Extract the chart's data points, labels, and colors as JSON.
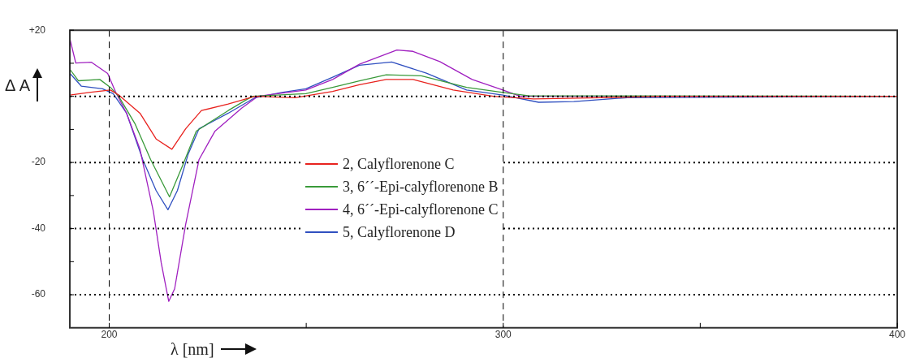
{
  "chart_data": {
    "type": "line",
    "xlabel": "λ [nm]",
    "ylabel": "Δ A",
    "xlim": [
      190,
      400
    ],
    "ylim": [
      -70,
      20
    ],
    "xticks": [
      200,
      {
        "value": 250,
        "label": null
      },
      300,
      {
        "value": 350,
        "label": null
      },
      400
    ],
    "yticks": [
      {
        "value": 20,
        "label": "+20"
      },
      {
        "value": 10,
        "label": null
      },
      {
        "value": 0,
        "label": null
      },
      {
        "value": -10,
        "label": null
      },
      -20,
      {
        "value": -30,
        "label": null
      },
      -40,
      {
        "value": -50,
        "label": null
      },
      -60
    ],
    "grid": false,
    "legend": "center",
    "line_style": "solid",
    "marker": "none",
    "ref_lines": [
      {
        "axis": "x",
        "value": 200,
        "line_style": "dashed",
        "color": "#000000"
      },
      {
        "axis": "x",
        "value": 300,
        "line_style": "dashed",
        "color": "#000000"
      },
      {
        "axis": "y",
        "value": 0,
        "line_style": "dotted",
        "color": "#000000"
      },
      {
        "axis": "y",
        "value": -20,
        "line_style": "dotted",
        "color": "#000000"
      },
      {
        "axis": "y",
        "value": -40,
        "line_style": "dotted",
        "color": "#000000"
      },
      {
        "axis": "y",
        "value": -60,
        "line_style": "dotted",
        "color": "#000000"
      }
    ],
    "series": [
      {
        "name": "2, Calyflorenone C",
        "color": "#e8231f",
        "x": [
          190,
          194.9,
          200.3,
          202.4,
          207.8,
          211.9,
          215.9,
          219.4,
          223.4,
          230.2,
          237,
          247.2,
          256.7,
          263.5,
          270.3,
          277.1,
          287.3,
          297.5,
          307.7,
          324.7,
          340,
          400
        ],
        "values": [
          0.4,
          1.2,
          1.9,
          0.4,
          -5.1,
          -12.9,
          -16,
          -9.8,
          -4.3,
          -2.3,
          0,
          -0.4,
          1.5,
          3.5,
          5.1,
          5.1,
          1.9,
          0,
          -0.8,
          -0.4,
          0,
          0
        ]
      },
      {
        "name": "3, 6´´-Epi-calyflorenone B",
        "color": "#3a9a3a",
        "x": [
          190,
          192.2,
          197.6,
          200.3,
          202.4,
          206.5,
          210.5,
          215.3,
          218.7,
          222.1,
          230.2,
          236.3,
          249.9,
          256.7,
          263.5,
          270.3,
          279.2,
          290.7,
          299.9,
          306.3,
          400
        ],
        "values": [
          8.2,
          4.7,
          5.1,
          2.7,
          0,
          -8.2,
          -19.1,
          -30.4,
          -20.7,
          -10.5,
          -4.3,
          0,
          0.8,
          2.7,
          4.7,
          6.5,
          6.2,
          2.7,
          1.2,
          0.2,
          0
        ]
      },
      {
        "name": "4, 6´´-Epi-calyflorenone C",
        "color": "#a020c0",
        "x": [
          190,
          191.5,
          195.5,
          199.6,
          201.7,
          204.4,
          207.8,
          211.2,
          213.2,
          215.1,
          216.6,
          219.4,
          222.8,
          226.8,
          233.6,
          237.7,
          249.9,
          256.7,
          263.5,
          273,
          277.1,
          283.9,
          292.1,
          299.9,
          304.3,
          400
        ],
        "values": [
          17.5,
          10.1,
          10.3,
          6.9,
          1.1,
          -5.1,
          -16,
          -34.8,
          -50.4,
          -62,
          -58.2,
          -38.7,
          -19.1,
          -10.6,
          -3.6,
          0,
          1.9,
          5.1,
          9.7,
          14,
          13.6,
          10.5,
          5.1,
          1.9,
          0,
          0
        ]
      },
      {
        "name": "5, Calyflorenone D",
        "color": "#3050c0",
        "x": [
          190,
          192.9,
          198.3,
          201,
          204.4,
          208.5,
          211.9,
          214.9,
          217.3,
          220,
          222.8,
          230.2,
          237,
          243.8,
          249.9,
          256.7,
          263.5,
          271.7,
          280.5,
          290.7,
          299.9,
          309,
          317.9,
          331.5,
          400
        ],
        "values": [
          7,
          3.1,
          2.3,
          0.8,
          -5.1,
          -19.1,
          -28.5,
          -34.3,
          -28.5,
          -17.6,
          -9.8,
          -5.1,
          -0.4,
          1.2,
          2.3,
          5.8,
          9.4,
          10.4,
          7,
          1.9,
          0.4,
          -1.8,
          -1.6,
          -0.4,
          0
        ]
      }
    ]
  }
}
